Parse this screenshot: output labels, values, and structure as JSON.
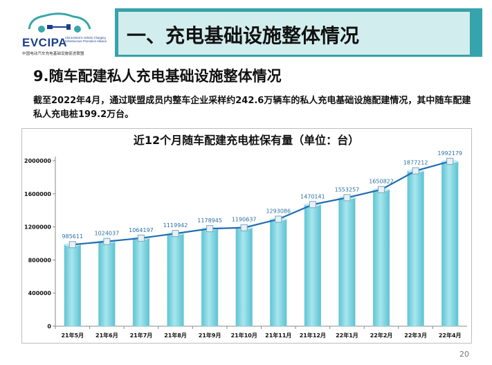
{
  "header": {
    "logo": {
      "name": "EVCIPA",
      "english": "China Electric Vehicle Charging Infrastructure Promotion Alliance",
      "chinese": "中国电动汽车充电基础设施促进联盟"
    },
    "title": "一、充电基础设施整体情况"
  },
  "section": {
    "subtitle": "9.随车配建私人充电基础设施整体情况",
    "description": "截至2022年4月，通过联盟成员内整车企业采样约242.6万辆车的私人充电基础设施配建情况，其中随车配建私人充电桩199.2万台。"
  },
  "chart_data": {
    "type": "bar",
    "title": "近12个月随车配建充电桩保有量（单位：台）",
    "categories": [
      "21年5月",
      "21年6月",
      "21年7月",
      "21年8月",
      "21年9月",
      "21年10月",
      "21年11月",
      "21年12月",
      "22年1月",
      "22年2月",
      "22年3月",
      "22年4月"
    ],
    "values": [
      985611,
      1024037,
      1064197,
      1119942,
      1178945,
      1190637,
      1293086,
      1470141,
      1553257,
      1650822,
      1877212,
      1992179
    ],
    "overlay_line": true,
    "ylim": [
      0,
      2000000
    ],
    "yticks": [
      "0",
      "400000",
      "800000",
      "1200000",
      "1600000",
      "2000000"
    ],
    "grid": false,
    "bar_color": "#7fd3df",
    "line_color": "#1f6db3"
  },
  "footer": {
    "page_number": "20"
  }
}
